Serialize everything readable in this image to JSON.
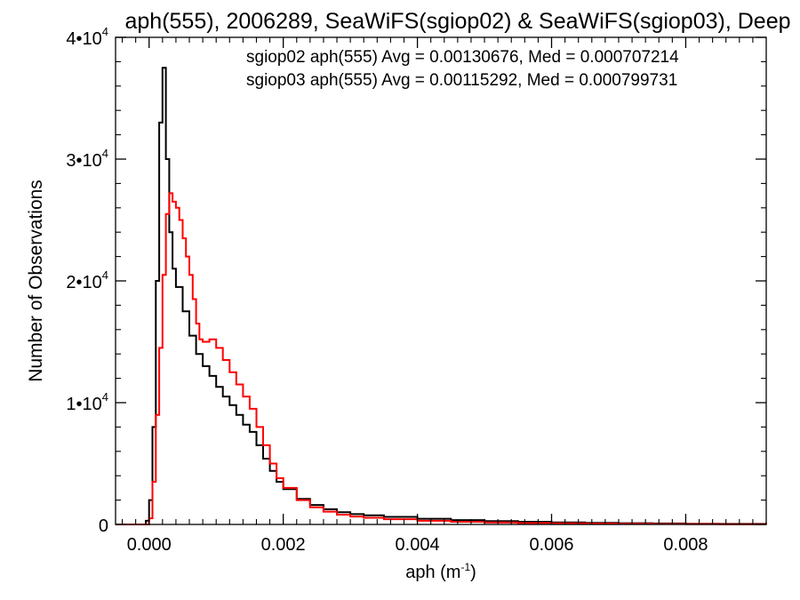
{
  "chart_data": {
    "type": "line",
    "title": "aph(555), 2006289, SeaWiFS(sgiop02) & SeaWiFS(sgiop03), Deep",
    "xlabel": "aph (m",
    "xlabel_sup": "-1",
    "xlabel_suffix": ")",
    "ylabel": "Number of Observations",
    "xlim": [
      -0.0005,
      0.0092
    ],
    "ylim": [
      0,
      40000
    ],
    "x_ticks": [
      0.0,
      0.002,
      0.004,
      0.006,
      0.008
    ],
    "x_tick_labels": [
      "0.000",
      "0.002",
      "0.004",
      "0.006",
      "0.008"
    ],
    "y_ticks": [
      0,
      10000,
      20000,
      30000,
      40000
    ],
    "y_tick_labels": [
      {
        "base": "0",
        "exp": ""
      },
      {
        "base": "1•10",
        "exp": "4"
      },
      {
        "base": "2•10",
        "exp": "4"
      },
      {
        "base": "3•10",
        "exp": "4"
      },
      {
        "base": "4•10",
        "exp": "4"
      }
    ],
    "grid": false,
    "legend": {
      "placement": "top-right",
      "entries": [
        {
          "text": "sgiop02 aph(555) Avg = 0.00130676, Med = 0.000707214",
          "color": "#000000"
        },
        {
          "text": "sgiop03 aph(555) Avg = 0.00115292, Med = 0.000799731",
          "color": "#ff0000"
        }
      ]
    },
    "series": [
      {
        "name": "sgiop02",
        "color": "#000000",
        "step": true,
        "points": [
          [
            -0.0005,
            0
          ],
          [
            -0.0001,
            0
          ],
          [
            -5e-05,
            300
          ],
          [
            0.0,
            2000
          ],
          [
            5e-05,
            8000
          ],
          [
            0.0001,
            20000
          ],
          [
            0.00015,
            33000
          ],
          [
            0.0002,
            37500
          ],
          [
            0.00025,
            30000
          ],
          [
            0.0003,
            24000
          ],
          [
            0.00035,
            21000
          ],
          [
            0.0004,
            19500
          ],
          [
            0.0005,
            17500
          ],
          [
            0.0006,
            15500
          ],
          [
            0.0007,
            14000
          ],
          [
            0.0008,
            13000
          ],
          [
            0.0009,
            12200
          ],
          [
            0.001,
            11300
          ],
          [
            0.0011,
            10500
          ],
          [
            0.0012,
            9800
          ],
          [
            0.0013,
            9000
          ],
          [
            0.0014,
            8200
          ],
          [
            0.0015,
            7600
          ],
          [
            0.0016,
            6500
          ],
          [
            0.0017,
            5400
          ],
          [
            0.0018,
            4400
          ],
          [
            0.0019,
            3500
          ],
          [
            0.002,
            2900
          ],
          [
            0.0022,
            2100
          ],
          [
            0.0024,
            1600
          ],
          [
            0.0026,
            1250
          ],
          [
            0.0028,
            1000
          ],
          [
            0.003,
            850
          ],
          [
            0.0032,
            750
          ],
          [
            0.0035,
            620
          ],
          [
            0.004,
            470
          ],
          [
            0.0045,
            360
          ],
          [
            0.005,
            280
          ],
          [
            0.0055,
            220
          ],
          [
            0.006,
            170
          ],
          [
            0.0065,
            130
          ],
          [
            0.007,
            100
          ],
          [
            0.0075,
            80
          ],
          [
            0.008,
            60
          ],
          [
            0.0085,
            45
          ],
          [
            0.0092,
            35
          ]
        ]
      },
      {
        "name": "sgiop03",
        "color": "#ff0000",
        "step": true,
        "points": [
          [
            -0.0005,
            0
          ],
          [
            -5e-05,
            0
          ],
          [
            0.0,
            500
          ],
          [
            5e-05,
            3500
          ],
          [
            0.0001,
            9000
          ],
          [
            0.00015,
            14500
          ],
          [
            0.0002,
            20500
          ],
          [
            0.00025,
            25500
          ],
          [
            0.0003,
            27200
          ],
          [
            0.00035,
            26500
          ],
          [
            0.0004,
            26000
          ],
          [
            0.00045,
            25000
          ],
          [
            0.0005,
            23500
          ],
          [
            0.00055,
            22000
          ],
          [
            0.0006,
            20500
          ],
          [
            0.00065,
            18500
          ],
          [
            0.0007,
            16500
          ],
          [
            0.00075,
            15200
          ],
          [
            0.0008,
            15000
          ],
          [
            0.0009,
            15200
          ],
          [
            0.001,
            14500
          ],
          [
            0.0011,
            13500
          ],
          [
            0.0012,
            12500
          ],
          [
            0.0013,
            11500
          ],
          [
            0.0014,
            10500
          ],
          [
            0.0015,
            9500
          ],
          [
            0.0016,
            8000
          ],
          [
            0.0017,
            6500
          ],
          [
            0.0018,
            5000
          ],
          [
            0.0019,
            3800
          ],
          [
            0.002,
            3000
          ],
          [
            0.0022,
            2000
          ],
          [
            0.0024,
            1400
          ],
          [
            0.0026,
            1050
          ],
          [
            0.0028,
            800
          ],
          [
            0.003,
            650
          ],
          [
            0.0032,
            550
          ],
          [
            0.0035,
            430
          ],
          [
            0.004,
            300
          ],
          [
            0.0045,
            220
          ],
          [
            0.005,
            160
          ],
          [
            0.0055,
            120
          ],
          [
            0.006,
            90
          ],
          [
            0.0065,
            70
          ],
          [
            0.007,
            55
          ],
          [
            0.0075,
            40
          ],
          [
            0.008,
            30
          ],
          [
            0.0085,
            22
          ],
          [
            0.0092,
            15
          ]
        ]
      }
    ]
  }
}
